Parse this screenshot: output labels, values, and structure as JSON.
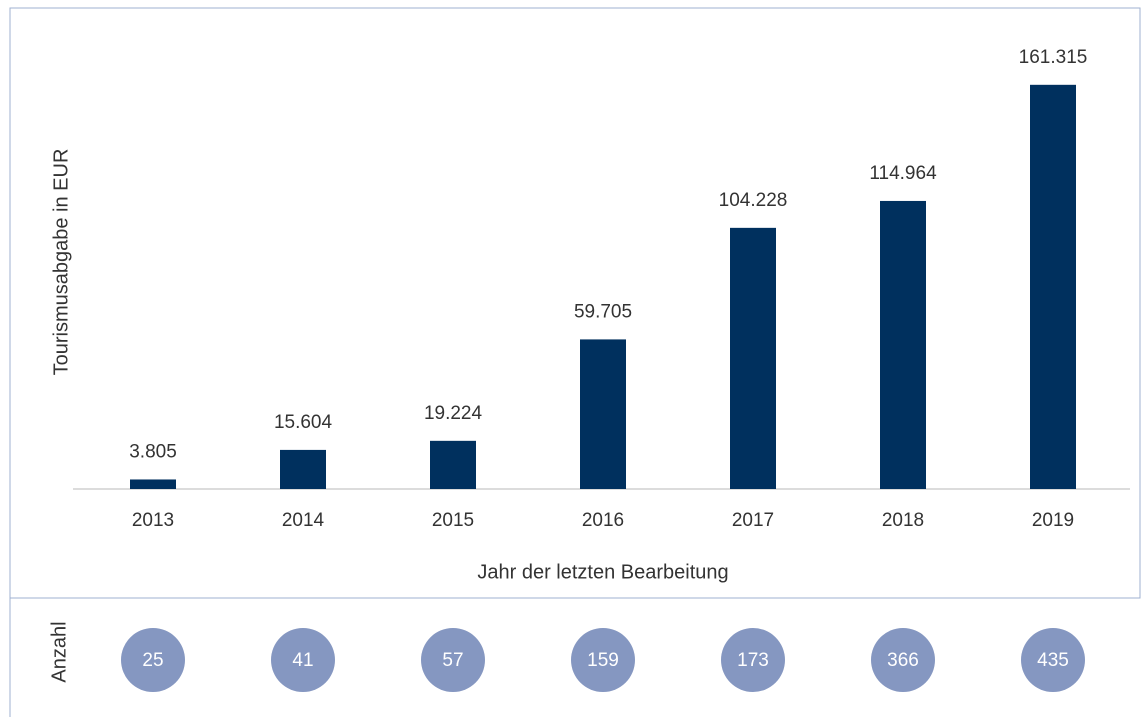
{
  "chart_data": {
    "type": "bar",
    "y_label": "Tourismusabgabe in EUR",
    "x_label": "Jahr der letzten Bearbeitung",
    "categories": [
      "2013",
      "2014",
      "2015",
      "2016",
      "2017",
      "2018",
      "2019"
    ],
    "values": [
      3805,
      15604,
      19224,
      59705,
      104228,
      114964,
      161315
    ],
    "value_labels": [
      "3.805",
      "15.604",
      "19.224",
      "59.705",
      "104.228",
      "114.964",
      "161.315"
    ],
    "color": "#00305e",
    "ylim": [
      0,
      180000
    ],
    "count_label": "Anzahl",
    "counts": [
      25,
      41,
      57,
      159,
      173,
      366,
      435
    ],
    "count_color": "#8597c1"
  }
}
